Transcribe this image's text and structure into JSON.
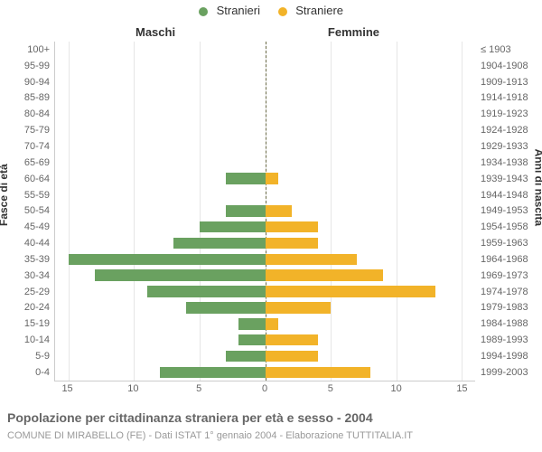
{
  "legend": {
    "male": {
      "label": "Stranieri",
      "color": "#6aa160"
    },
    "female": {
      "label": "Straniere",
      "color": "#f2b329"
    }
  },
  "section_headers": {
    "male": "Maschi",
    "female": "Femmine"
  },
  "yaxis_left_title": "Fasce di età",
  "yaxis_right_title": "Anni di nascita",
  "x_axis": {
    "max": 16,
    "ticks_left": [
      15,
      10,
      5,
      0
    ],
    "ticks_right": [
      0,
      5,
      10,
      15
    ]
  },
  "chart": {
    "type": "population-pyramid",
    "bar_colors": {
      "male": "#6aa160",
      "female": "#f2b329"
    },
    "background_color": "#ffffff",
    "grid_color": "#e6e6e6",
    "divider_color": "#6b6b47",
    "label_color": "#666666",
    "title_color": "#666666",
    "subtitle_color": "#999999",
    "label_fontsize": 11,
    "title_fontsize": 14,
    "subtitle_fontsize": 11,
    "rows": [
      {
        "age": "100+",
        "year": "≤ 1903",
        "m": 0,
        "f": 0
      },
      {
        "age": "95-99",
        "year": "1904-1908",
        "m": 0,
        "f": 0
      },
      {
        "age": "90-94",
        "year": "1909-1913",
        "m": 0,
        "f": 0
      },
      {
        "age": "85-89",
        "year": "1914-1918",
        "m": 0,
        "f": 0
      },
      {
        "age": "80-84",
        "year": "1919-1923",
        "m": 0,
        "f": 0
      },
      {
        "age": "75-79",
        "year": "1924-1928",
        "m": 0,
        "f": 0
      },
      {
        "age": "70-74",
        "year": "1929-1933",
        "m": 0,
        "f": 0
      },
      {
        "age": "65-69",
        "year": "1934-1938",
        "m": 0,
        "f": 0
      },
      {
        "age": "60-64",
        "year": "1939-1943",
        "m": 3,
        "f": 1
      },
      {
        "age": "55-59",
        "year": "1944-1948",
        "m": 0,
        "f": 0
      },
      {
        "age": "50-54",
        "year": "1949-1953",
        "m": 3,
        "f": 2
      },
      {
        "age": "45-49",
        "year": "1954-1958",
        "m": 5,
        "f": 4
      },
      {
        "age": "40-44",
        "year": "1959-1963",
        "m": 7,
        "f": 4
      },
      {
        "age": "35-39",
        "year": "1964-1968",
        "m": 15,
        "f": 7
      },
      {
        "age": "30-34",
        "year": "1969-1973",
        "m": 13,
        "f": 9
      },
      {
        "age": "25-29",
        "year": "1974-1978",
        "m": 9,
        "f": 13
      },
      {
        "age": "20-24",
        "year": "1979-1983",
        "m": 6,
        "f": 5
      },
      {
        "age": "15-19",
        "year": "1984-1988",
        "m": 2,
        "f": 1
      },
      {
        "age": "10-14",
        "year": "1989-1993",
        "m": 2,
        "f": 4
      },
      {
        "age": "5-9",
        "year": "1994-1998",
        "m": 3,
        "f": 4
      },
      {
        "age": "0-4",
        "year": "1999-2003",
        "m": 8,
        "f": 8
      }
    ]
  },
  "title": "Popolazione per cittadinanza straniera per età e sesso - 2004",
  "subtitle": "COMUNE DI MIRABELLO (FE) - Dati ISTAT 1° gennaio 2004 - Elaborazione TUTTITALIA.IT"
}
